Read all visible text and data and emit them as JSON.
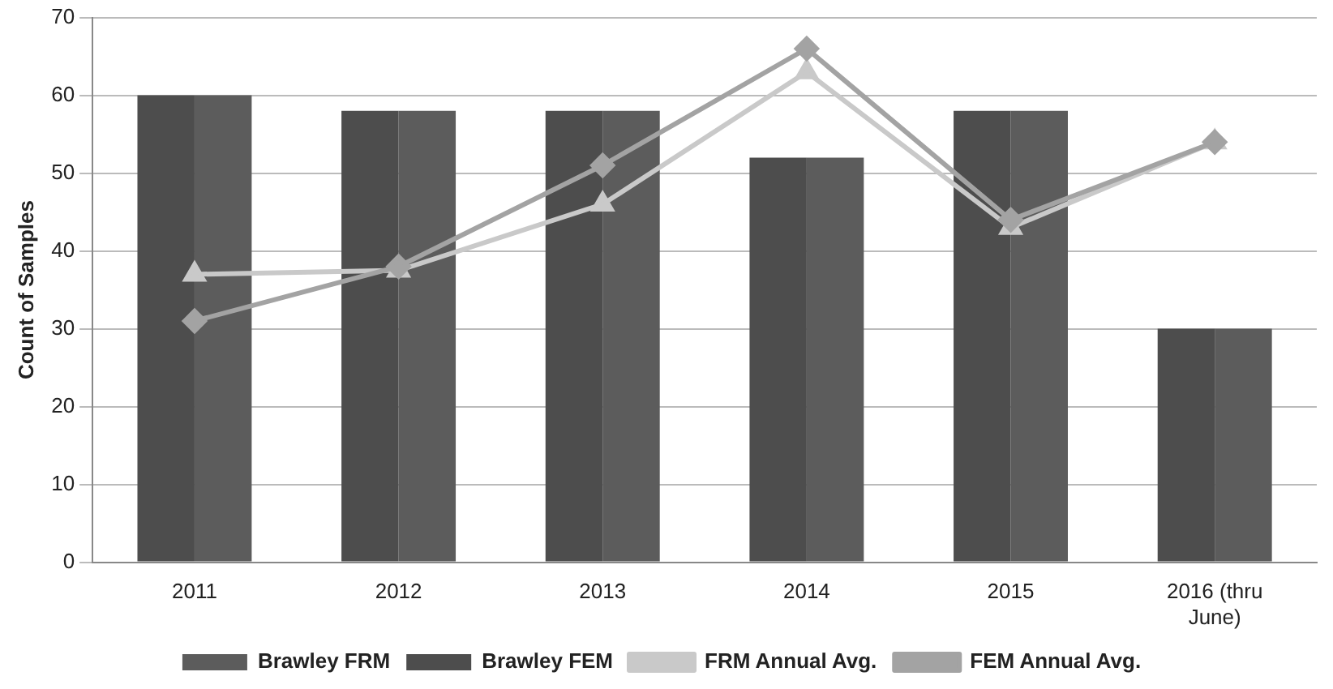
{
  "chart_data": {
    "type": "bar",
    "ylabel": "Count of Samples",
    "categories": [
      "2011",
      "2012",
      "2013",
      "2014",
      "2015",
      "2016 (thru June)"
    ],
    "series": [
      {
        "name": "Brawley FRM",
        "color": "#5c5c5c",
        "values": [
          60,
          58,
          58,
          52,
          58,
          30
        ]
      },
      {
        "name": "Brawley FEM",
        "color": "#4d4d4d",
        "values": [
          60,
          58,
          58,
          52,
          58,
          30
        ]
      },
      {
        "name": "FRM Annual Avg.",
        "type": "line",
        "color": "#c9c9c9",
        "marker": "triangle",
        "values": [
          37,
          37.5,
          46,
          63,
          43,
          54
        ]
      },
      {
        "name": "FEM Annual Avg.",
        "type": "line",
        "color": "#a3a3a3",
        "marker": "diamond",
        "values": [
          31,
          38,
          51,
          66,
          44,
          54
        ]
      }
    ],
    "ylim": [
      0,
      70
    ],
    "yticks": [
      0,
      10,
      20,
      30,
      40,
      50,
      60,
      70
    ],
    "grid": "y",
    "legend": "bottom"
  }
}
